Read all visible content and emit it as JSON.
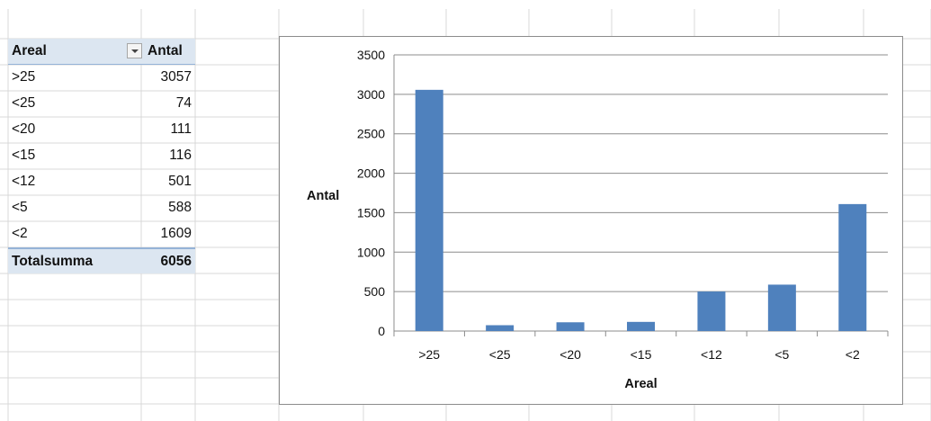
{
  "pivot": {
    "header": {
      "label": "Areal",
      "value": "Antal"
    },
    "rows": [
      {
        "label": ">25",
        "value": "3057"
      },
      {
        "label": "<25",
        "value": "74"
      },
      {
        "label": "<20",
        "value": "111"
      },
      {
        "label": "<15",
        "value": "116"
      },
      {
        "label": "<12",
        "value": "501"
      },
      {
        "label": "<5",
        "value": "588"
      },
      {
        "label": "<2",
        "value": "1609"
      }
    ],
    "total": {
      "label": "Totalsumma",
      "value": "6056"
    }
  },
  "chart_data": {
    "type": "bar",
    "categories": [
      ">25",
      "<25",
      "<20",
      "<15",
      "<12",
      "<5",
      "<2"
    ],
    "values": [
      3057,
      74,
      111,
      116,
      501,
      588,
      1609
    ],
    "title": "",
    "xlabel": "Areal",
    "ylabel": "Antal",
    "ylim": [
      0,
      3500
    ],
    "yticks": [
      0,
      500,
      1000,
      1500,
      2000,
      2500,
      3000,
      3500
    ],
    "grid": true,
    "legend": "none",
    "bar_color": "#4f81bd",
    "gridline_color": "#8c8c8c"
  }
}
